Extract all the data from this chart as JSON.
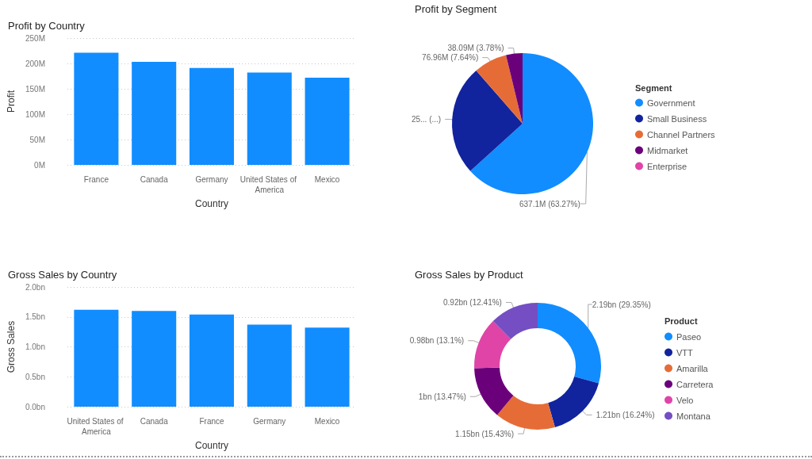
{
  "chart_data": [
    {
      "type": "bar",
      "title": "Profit by Country",
      "xlabel": "Country",
      "ylabel": "Profit",
      "categories": [
        "France",
        "Canada",
        "Germany",
        "United States of America",
        "Mexico"
      ],
      "values": [
        221,
        203,
        191,
        182,
        172
      ],
      "color": "#118dff",
      "ylim": [
        0,
        250
      ],
      "yticks": [
        {
          "value": 0,
          "label": "0M"
        },
        {
          "value": 50,
          "label": "50M"
        },
        {
          "value": 100,
          "label": "100M"
        },
        {
          "value": 150,
          "label": "150M"
        },
        {
          "value": 200,
          "label": "200M"
        },
        {
          "value": 250,
          "label": "250M"
        }
      ],
      "grid": "y"
    },
    {
      "type": "pie",
      "title": "Profit by Segment",
      "legend_title": "Segment",
      "legend": "right",
      "categories": [
        "Government",
        "Small Business",
        "Channel Partners",
        "Midmarket",
        "Enterprise"
      ],
      "values": [
        63.27,
        25.31,
        7.64,
        3.78,
        null
      ],
      "colors": [
        "#118dff",
        "#12239e",
        "#e66c37",
        "#6b007b",
        "#e044a7"
      ],
      "value_labels": [
        "637.1M (63.27%)",
        "25... (...)",
        "76.96M (7.64%)",
        "38.09M (3.78%)",
        null
      ]
    },
    {
      "type": "bar",
      "title": "Gross Sales by Country",
      "xlabel": "Country",
      "ylabel": "Gross Sales",
      "categories": [
        "United States of America",
        "Canada",
        "France",
        "Germany",
        "Mexico"
      ],
      "values": [
        1.62,
        1.6,
        1.54,
        1.37,
        1.32
      ],
      "color": "#118dff",
      "ylim": [
        0,
        2
      ],
      "yticks": [
        {
          "value": 0,
          "label": "0.0bn"
        },
        {
          "value": 0.5,
          "label": "0.5bn"
        },
        {
          "value": 1,
          "label": "1.0bn"
        },
        {
          "value": 1.5,
          "label": "1.5bn"
        },
        {
          "value": 2,
          "label": "2.0bn"
        }
      ],
      "grid": "y"
    },
    {
      "type": "donut",
      "title": "Gross Sales by Product",
      "legend_title": "Product",
      "legend": "right",
      "categories": [
        "Paseo",
        "VTT",
        "Amarilla",
        "Carretera",
        "Velo",
        "Montana"
      ],
      "values": [
        29.35,
        16.24,
        15.43,
        13.47,
        13.1,
        12.41
      ],
      "colors": [
        "#118dff",
        "#12239e",
        "#e66c37",
        "#6b007b",
        "#e044a7",
        "#744ec2"
      ],
      "value_labels": [
        "2.19bn (29.35%)",
        "1.21bn (16.24%)",
        "1.15bn (15.43%)",
        "1bn (13.47%)",
        "0.98bn (13.1%)",
        "0.92bn (12.41%)"
      ]
    }
  ]
}
